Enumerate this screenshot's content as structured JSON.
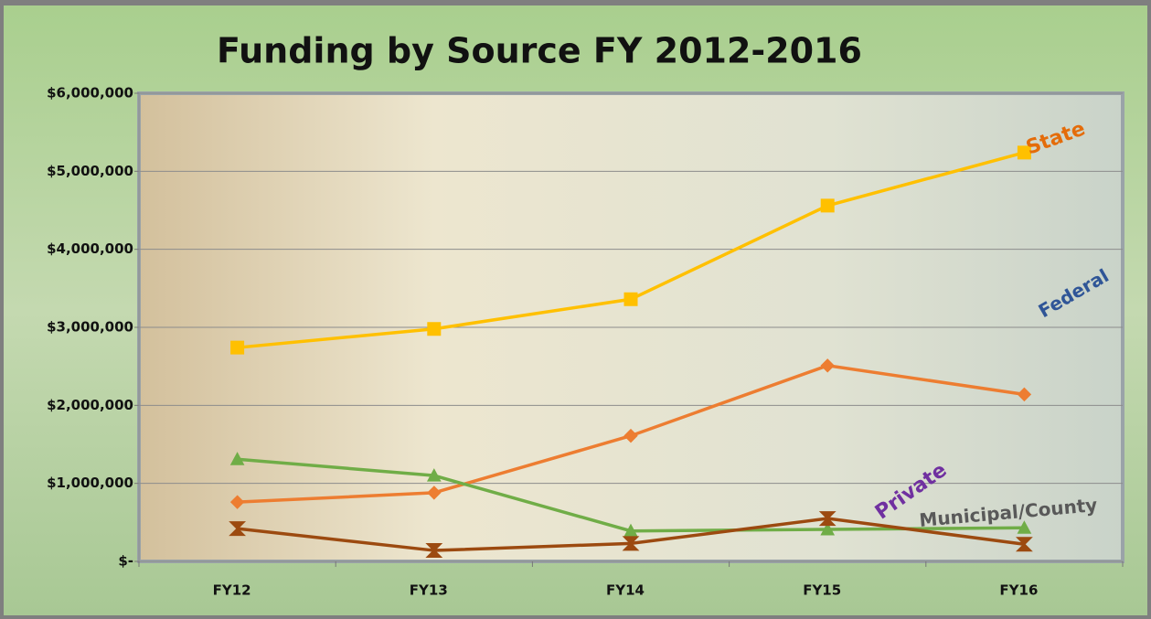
{
  "chart_data": {
    "type": "line",
    "title": "Funding by Source  FY 2012-2016",
    "categories": [
      "FY12",
      "FY13",
      "FY14",
      "FY15",
      "FY16"
    ],
    "series": [
      {
        "color": "#ffc000",
        "marker": "square",
        "values": [
          2740000,
          2980000,
          3360000,
          4560000,
          5240000
        ]
      },
      {
        "color": "#ed7d31",
        "marker": "diamond",
        "values": [
          760000,
          880000,
          1610000,
          2510000,
          2140000
        ]
      },
      {
        "color": "#70ad47",
        "marker": "triangle",
        "values": [
          1310000,
          1100000,
          390000,
          410000,
          430000
        ]
      },
      {
        "color": "#9c4a10",
        "marker": "hourglass",
        "values": [
          420000,
          140000,
          230000,
          550000,
          220000
        ]
      }
    ],
    "ylim": [
      0,
      6000000
    ],
    "yticks": [
      {
        "value": 0,
        "label": "$-"
      },
      {
        "value": 1000000,
        "label": "$1,000,000"
      },
      {
        "value": 2000000,
        "label": "$2,000,000"
      },
      {
        "value": 3000000,
        "label": "$3,000,000"
      },
      {
        "value": 4000000,
        "label": "$4,000,000"
      },
      {
        "value": 5000000,
        "label": "$5,000,000"
      },
      {
        "value": 6000000,
        "label": "$6,000,000"
      }
    ],
    "grid": true,
    "annotations": [
      {
        "text": "State",
        "color": "#e46c0a"
      },
      {
        "text": "Federal",
        "color": "#2f5597"
      },
      {
        "text": "Private",
        "color": "#7030a0"
      },
      {
        "text": "Municipal/County",
        "color": "#595959"
      }
    ]
  }
}
